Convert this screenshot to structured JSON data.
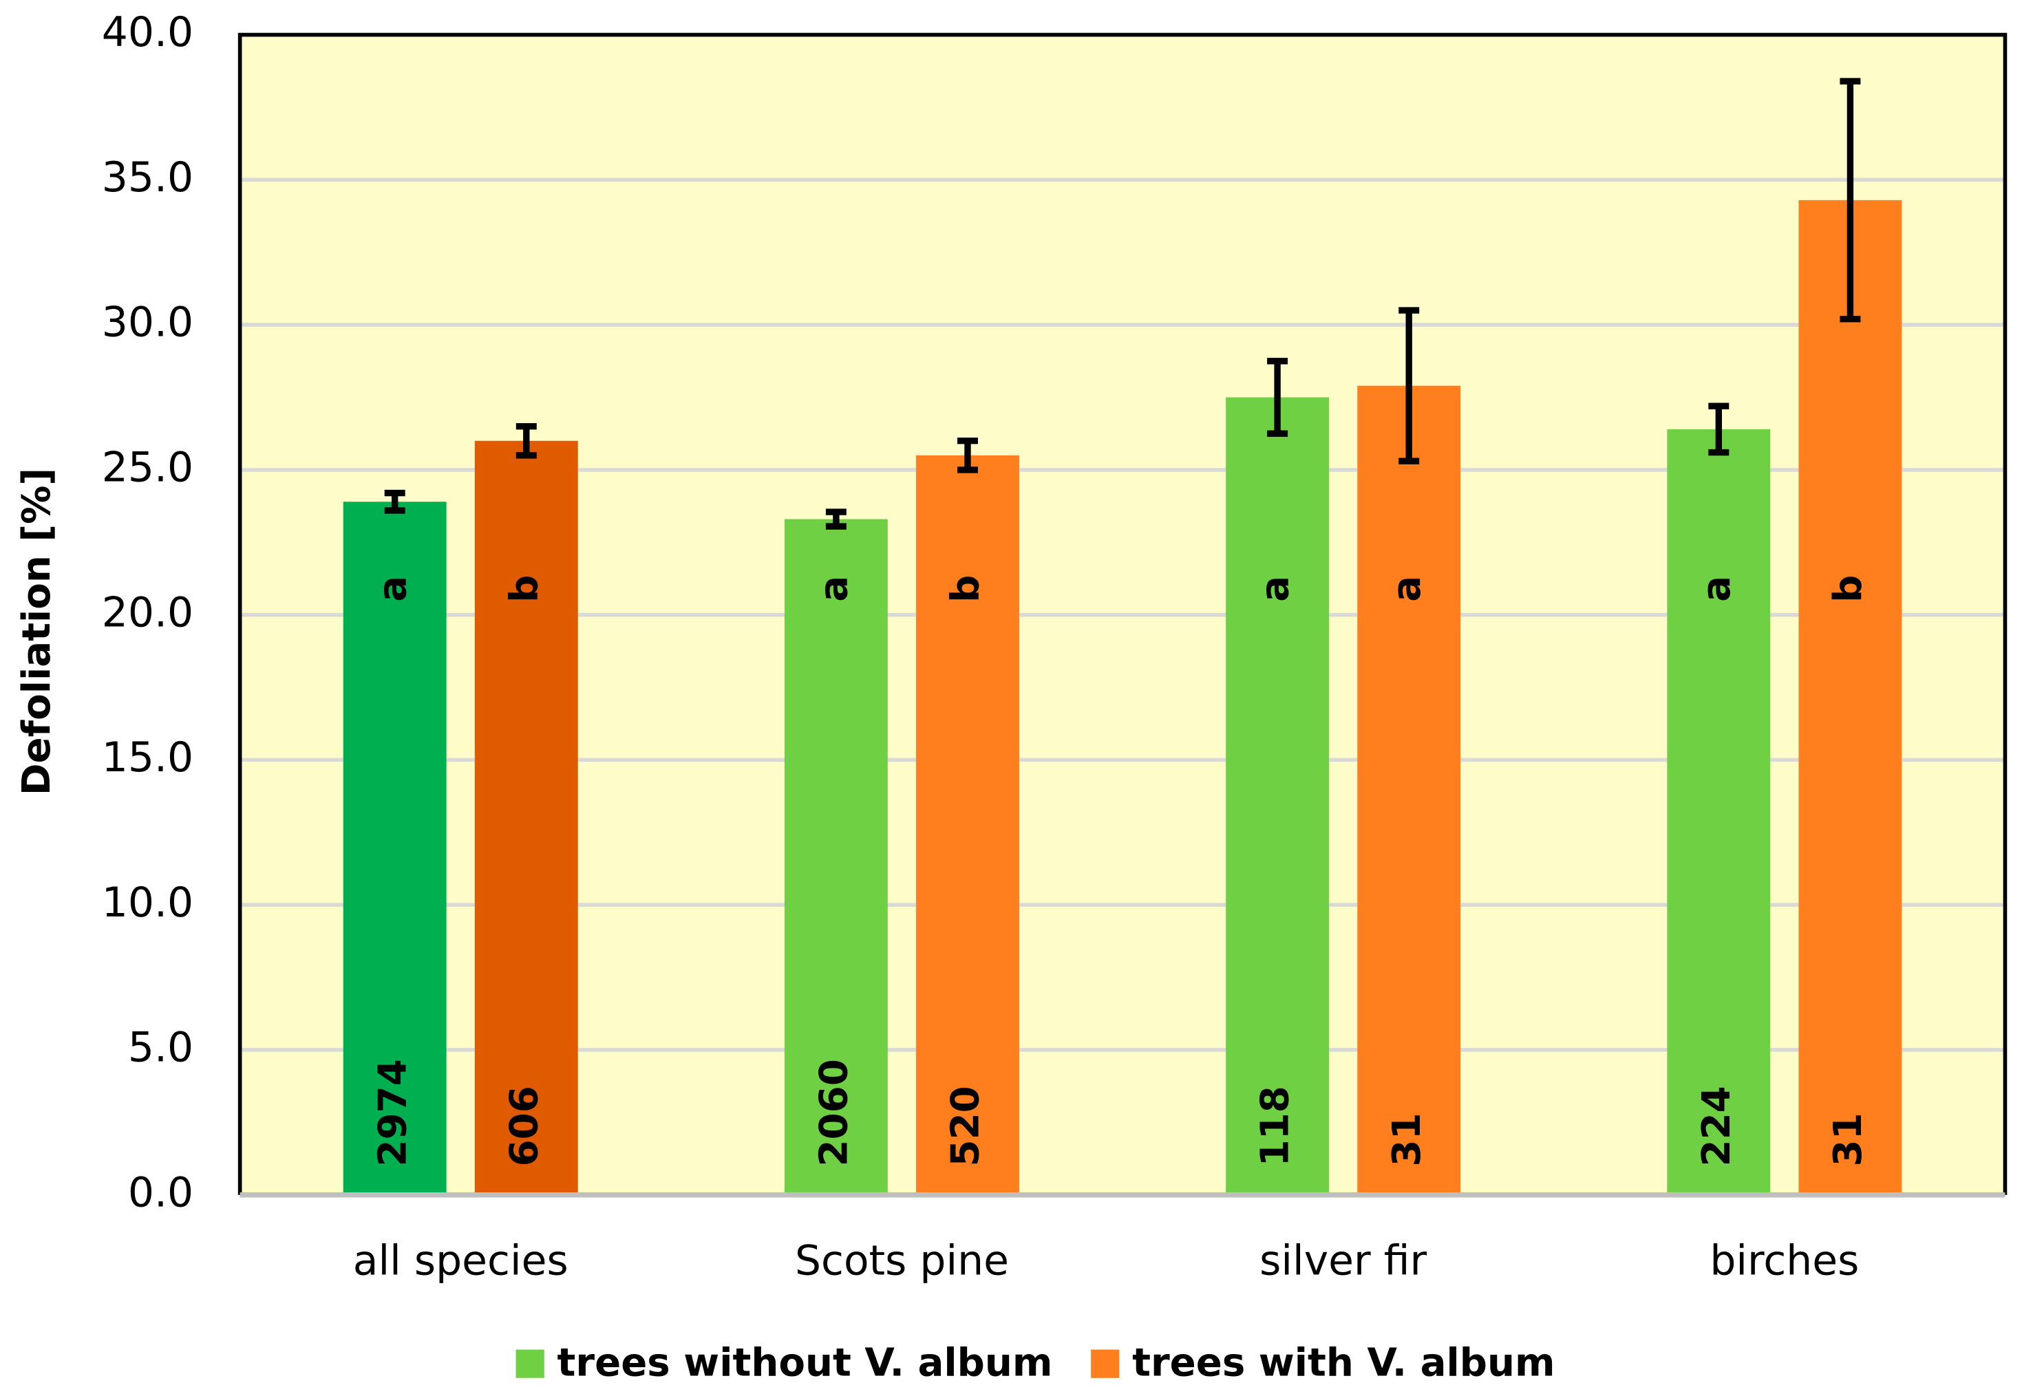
{
  "chart_data": {
    "type": "bar",
    "y_label": "Defoliation   [%]",
    "categories": [
      "all species",
      "Scots pine",
      "silver fir",
      "birches"
    ],
    "series": [
      {
        "name": "trees without V. album",
        "color": "#70d044",
        "colors": [
          "#00b050",
          "#70d044",
          "#70d044",
          "#70d044"
        ],
        "values": [
          23.9,
          23.3,
          27.5,
          26.4
        ],
        "errors": [
          0.3,
          0.25,
          1.25,
          0.8
        ],
        "letters": [
          "a",
          "a",
          "a",
          "a"
        ],
        "n": [
          2974,
          2060,
          118,
          224
        ]
      },
      {
        "name": "trees with V. album",
        "color": "#ff7f1f",
        "colors": [
          "#e05a00",
          "#ff7f1f",
          "#ff7f1f",
          "#ff7f1f"
        ],
        "values": [
          26.0,
          25.5,
          27.9,
          34.3
        ],
        "errors": [
          0.5,
          0.5,
          2.6,
          4.1
        ],
        "letters": [
          "b",
          "b",
          "a",
          "b"
        ],
        "n": [
          606,
          520,
          31,
          31
        ]
      }
    ],
    "ylim": [
      0,
      40
    ],
    "yticks": [
      {
        "value": 0,
        "label": "0.0"
      },
      {
        "value": 5,
        "label": "5.0"
      },
      {
        "value": 10,
        "label": "10.0"
      },
      {
        "value": 15,
        "label": "15.0"
      },
      {
        "value": 20,
        "label": "20.0"
      },
      {
        "value": 25,
        "label": "25.0"
      },
      {
        "value": 30,
        "label": "30.0"
      },
      {
        "value": 35,
        "label": "35.0"
      },
      {
        "value": 40,
        "label": "40.0"
      }
    ],
    "grid": true,
    "legend": "bottom"
  }
}
